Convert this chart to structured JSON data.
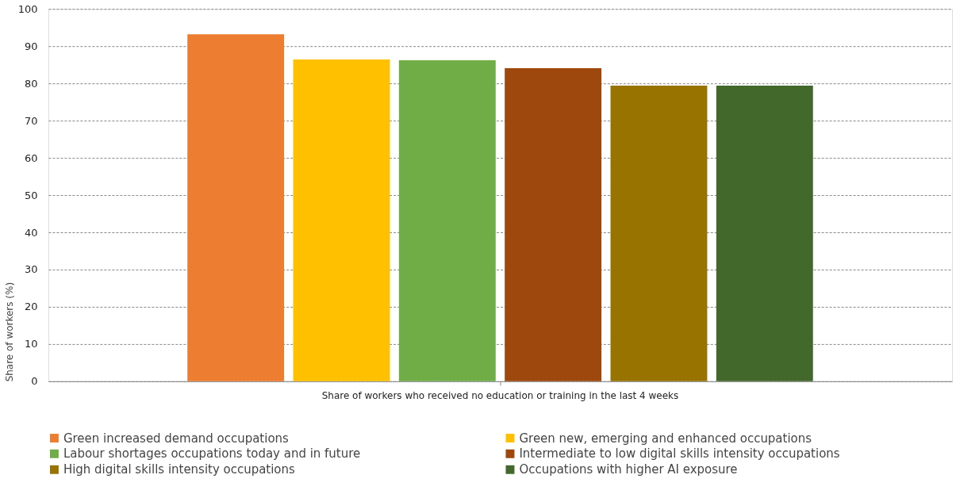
{
  "chart_data": {
    "type": "bar",
    "categories": [
      "Share of workers who received no education or training in the last 4 weeks"
    ],
    "ylabel": "Share of workers (%)",
    "series": [
      {
        "name": "Green increased demand occupations",
        "color": "#ed7d31",
        "values": [
          93.2
        ]
      },
      {
        "name": "Green new, emerging and enhanced occupations",
        "color": "#ffc000",
        "values": [
          86.4
        ]
      },
      {
        "name": "Labour shortages occupations today and in future",
        "color": "#70ad47",
        "values": [
          86.2
        ]
      },
      {
        "name": "Intermediate to low digital skills intensity occupations",
        "color": "#9e480e",
        "values": [
          84.1
        ]
      },
      {
        "name": "High digital skills intensity occupations",
        "color": "#997300",
        "values": [
          79.4
        ]
      },
      {
        "name": "Occupations with higher AI exposure",
        "color": "#43682b",
        "values": [
          79.4
        ]
      }
    ],
    "ylim": [
      0,
      100
    ],
    "yticks": [
      0,
      10,
      20,
      30,
      40,
      50,
      60,
      70,
      80,
      90,
      100
    ],
    "grid": "y",
    "legend": "bottom"
  }
}
